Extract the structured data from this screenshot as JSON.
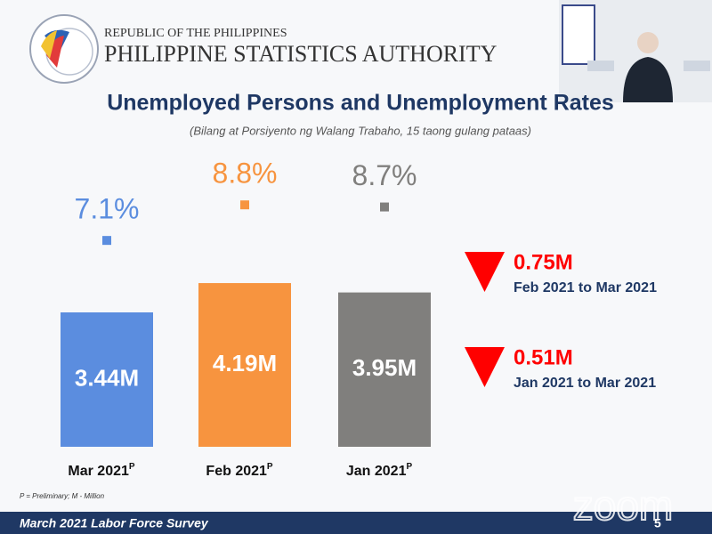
{
  "header": {
    "republic": "REPUBLIC OF THE PHILIPPINES",
    "agency": "PHILIPPINE STATISTICS AUTHORITY"
  },
  "chart_data": {
    "type": "bar",
    "title": "Unemployed Persons and Unemployment Rates",
    "subtitle": "(Bilang at Porsiyento ng Walang Trabaho, 15 taong gulang pataas)",
    "categories": [
      "Mar  2021",
      "Feb 2021",
      "Jan 2021"
    ],
    "category_notes": [
      "P",
      "P",
      "P"
    ],
    "colors": [
      "#5b8ddf",
      "#f7943f",
      "#807f7d"
    ],
    "values": [
      3.44,
      4.19,
      3.95
    ],
    "value_labels": [
      "3.44M",
      "4.19M",
      "3.95M"
    ],
    "rates": [
      7.1,
      8.8,
      8.7
    ],
    "rate_labels": [
      "7.1%",
      "8.8%",
      "8.7%"
    ],
    "changes": [
      {
        "label": "0.75M",
        "period": "Feb 2021 to Mar 2021"
      },
      {
        "label": "0.51M",
        "period": "Jan 2021 to Mar 2021"
      }
    ],
    "note": "P = Preliminary; M - Million"
  },
  "footer": {
    "survey": "March 2021 Labor Force Survey",
    "page": "5"
  },
  "watermark": "zoom"
}
